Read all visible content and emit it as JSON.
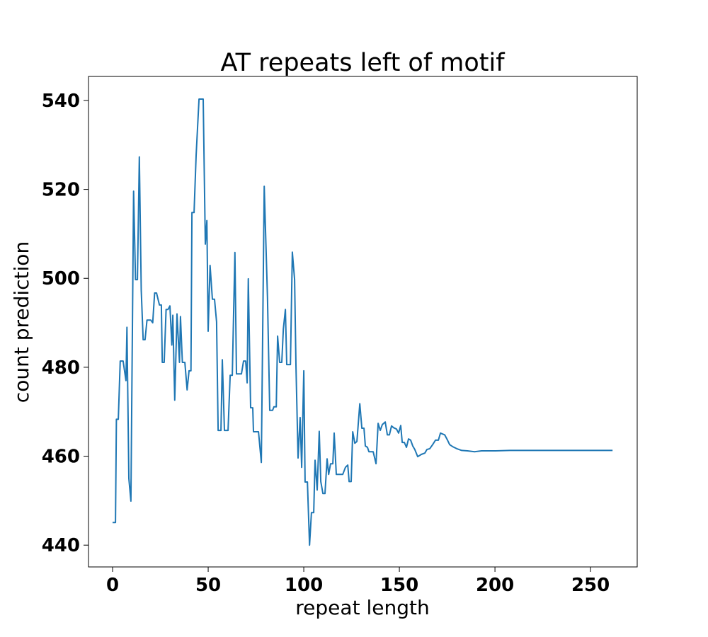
{
  "chart_data": {
    "type": "line",
    "title": "AT repeats left of motif",
    "x_label": "repeat length",
    "y_label": "count prediction",
    "x": [
      0,
      1.5,
      2,
      3,
      4,
      5.5,
      7,
      7.5,
      8.5,
      9.6,
      11,
      12,
      13,
      14,
      15,
      16,
      17,
      18,
      20,
      21,
      22,
      23,
      24.5,
      25.5,
      26,
      27,
      28,
      29,
      30,
      31,
      31.5,
      32.5,
      33.7,
      35,
      35.5,
      36.5,
      37.8,
      39,
      40,
      41,
      41.5,
      42.6,
      43.7,
      45.2,
      47.4,
      48.5,
      49.3,
      50,
      51,
      52.2,
      53.3,
      54.4,
      55.2,
      56.7,
      57.4,
      58.5,
      60.4,
      61.5,
      62.6,
      64,
      64.8,
      67.4,
      68.5,
      69.6,
      70.4,
      71,
      72.2,
      73.3,
      73.7,
      76.3,
      77.8,
      79.3,
      81,
      82.2,
      83.7,
      84.4,
      85.6,
      86.3,
      87.4,
      88.5,
      89.3,
      90.4,
      91.1,
      93,
      94,
      95.2,
      95.9,
      97,
      98.1,
      98.9,
      100,
      100.7,
      101.9,
      103,
      104,
      105.2,
      105.9,
      107,
      108.1,
      108.9,
      110,
      111.1,
      112.2,
      113,
      114,
      115.2,
      115.9,
      117,
      120.4,
      121.8,
      123,
      123.7,
      124.8,
      125.6,
      126.7,
      127.8,
      129.3,
      130.4,
      131.5,
      132.2,
      133.3,
      134.1,
      136.3,
      137.8,
      138.9,
      140,
      141.1,
      142.6,
      143.7,
      144.8,
      145.9,
      147,
      148.5,
      149.6,
      150.7,
      151.5,
      152.6,
      153.7,
      154.8,
      155.9,
      157,
      158.1,
      159.6,
      161.5,
      163.3,
      164.4,
      165.9,
      167.4,
      168.9,
      170.4,
      171.5,
      173.7,
      175.2,
      176.3,
      178.1,
      180,
      182.6,
      185.6,
      189.3,
      193,
      196.7,
      200.4,
      207.8,
      215.2,
      222.6,
      237.4,
      261.5
    ],
    "series": [
      {
        "name": "count prediction",
        "color": "#1f77b4",
        "values": [
          445.1,
          445.1,
          468.3,
          468.3,
          481.4,
          481.4,
          477,
          489,
          455,
          449.9,
          519.6,
          499.7,
          499.7,
          527.3,
          497.3,
          486.2,
          486.2,
          490.6,
          490.6,
          490,
          496.7,
          496.7,
          494,
          494,
          481.1,
          481.1,
          493,
          493,
          493.8,
          485,
          491.7,
          472.6,
          492,
          481.1,
          491.4,
          481.1,
          481.1,
          474.9,
          479.2,
          479.2,
          514.8,
          514.8,
          527.6,
          540.3,
          540.3,
          507.7,
          513,
          488.1,
          502.9,
          495.3,
          495.3,
          490.2,
          465.8,
          465.8,
          481.7,
          465.8,
          465.8,
          478.2,
          478.2,
          505.8,
          478.5,
          478.5,
          481.4,
          481.4,
          476.5,
          499.9,
          470.9,
          470.9,
          465.5,
          465.5,
          458.6,
          520.7,
          495.7,
          470.3,
          470.3,
          471.1,
          471.1,
          487,
          481.1,
          481.1,
          488.6,
          493,
          480.6,
          480.6,
          505.9,
          499.7,
          480.6,
          459.6,
          468.7,
          457.5,
          479.2,
          454.2,
          454.2,
          440,
          447.3,
          447.3,
          459.1,
          452.4,
          465.6,
          454.3,
          451.6,
          451.6,
          459.4,
          455.9,
          458.3,
          458.3,
          465.2,
          455.9,
          455.9,
          457.5,
          458,
          454.3,
          454.3,
          465.5,
          462.9,
          463.3,
          471.8,
          466.3,
          466.3,
          462.3,
          462,
          461,
          461,
          458.3,
          467.4,
          465.8,
          467.1,
          467.7,
          464.8,
          464.8,
          466.8,
          466.4,
          466.1,
          465.2,
          466.9,
          463.1,
          463.1,
          462,
          463.9,
          463.6,
          462.3,
          461.5,
          459.9,
          460.4,
          460.7,
          461.5,
          461.7,
          462.6,
          463.6,
          463.6,
          465.2,
          464.8,
          463.6,
          462.6,
          462.1,
          461.7,
          461.3,
          461.2,
          461,
          461.2,
          461.2,
          461.2,
          461.3,
          461.3,
          461.3,
          461.3,
          461.3
        ]
      }
    ],
    "xlim": [
      -12.6,
      274.4
    ],
    "ylim": [
      435.1,
      545.4
    ],
    "xticks": [
      0,
      50,
      100,
      150,
      200,
      250
    ],
    "yticks": [
      440,
      460,
      480,
      500,
      520,
      540
    ]
  }
}
